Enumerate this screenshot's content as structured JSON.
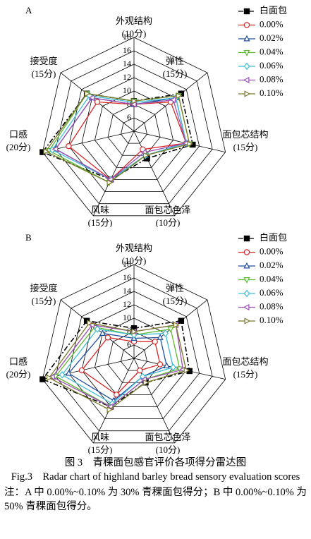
{
  "chart_data": [
    {
      "type": "radar",
      "panel": "A",
      "categories": [
        "外观结构",
        "弹性",
        "面包芯结构",
        "面包芯色泽",
        "风味",
        "口感",
        "接受度"
      ],
      "category_notes": [
        "(10分)",
        "(15分)",
        "(15分)",
        "(10分)",
        "(15分)",
        "(20分)",
        "(15分)"
      ],
      "rlim": [
        4,
        18
      ],
      "rticks": [
        6,
        8,
        10,
        12,
        14,
        16,
        18
      ],
      "series": [
        {
          "name": "白面包",
          "color": "#000000",
          "marker": "square",
          "dash": "dashdot",
          "values": [
            8.5,
            13,
            13,
            8.5,
            12,
            18,
            13
          ]
        },
        {
          "name": "0.00%",
          "color": "#d62728",
          "marker": "circle",
          "values": [
            8,
            11,
            12,
            7,
            12,
            14,
            11
          ]
        },
        {
          "name": "0.02%",
          "color": "#1f4e9c",
          "marker": "triangle-up",
          "values": [
            8,
            12,
            12,
            8,
            12,
            16,
            12
          ]
        },
        {
          "name": "0.04%",
          "color": "#5cb82e",
          "marker": "triangle-down",
          "values": [
            8.5,
            12.5,
            12.5,
            8,
            12.5,
            17,
            13
          ]
        },
        {
          "name": "0.06%",
          "color": "#3fbfd6",
          "marker": "diamond",
          "values": [
            8.3,
            12,
            12,
            8,
            12,
            16.5,
            12.5
          ]
        },
        {
          "name": "0.08%",
          "color": "#9b4fb5",
          "marker": "triangle-left",
          "values": [
            8,
            11.5,
            12,
            7.5,
            12,
            16,
            12
          ]
        },
        {
          "name": "0.10%",
          "color": "#7a7a2a",
          "marker": "triangle-right",
          "values": [
            8.5,
            12.5,
            12.5,
            8,
            12.5,
            17.5,
            13
          ]
        }
      ]
    },
    {
      "type": "radar",
      "panel": "B",
      "categories": [
        "外观结构",
        "弹性",
        "面包芯结构",
        "面包芯色泽",
        "风味",
        "口感",
        "接受度"
      ],
      "category_notes": [
        "(10分)",
        "(15分)",
        "(15分)",
        "(10分)",
        "(15分)",
        "(20分)",
        "(15分)"
      ],
      "rlim": [
        4,
        18
      ],
      "rticks": [
        6,
        8,
        10,
        12,
        14,
        16,
        18
      ],
      "series": [
        {
          "name": "白面包",
          "color": "#000000",
          "marker": "square",
          "dash": "dashdot",
          "values": [
            8.5,
            13,
            12.5,
            8,
            12,
            18,
            13
          ]
        },
        {
          "name": "0.00%",
          "color": "#d62728",
          "marker": "circle",
          "values": [
            6.5,
            8,
            8,
            6,
            10,
            12,
            9
          ]
        },
        {
          "name": "0.02%",
          "color": "#1f4e9c",
          "marker": "triangle-up",
          "values": [
            7,
            9,
            9,
            7,
            11,
            14,
            10
          ]
        },
        {
          "name": "0.04%",
          "color": "#5cb82e",
          "marker": "triangle-down",
          "values": [
            7.5,
            11,
            11,
            7.5,
            12,
            16,
            11.5
          ]
        },
        {
          "name": "0.06%",
          "color": "#3fbfd6",
          "marker": "diamond",
          "values": [
            7.5,
            10,
            10,
            7,
            11.5,
            15,
            11
          ]
        },
        {
          "name": "0.08%",
          "color": "#9b4fb5",
          "marker": "triangle-left",
          "values": [
            8,
            12,
            11.5,
            7.5,
            12,
            16.5,
            12
          ]
        },
        {
          "name": "0.10%",
          "color": "#7a7a2a",
          "marker": "triangle-right",
          "values": [
            8,
            12,
            12,
            8,
            12.5,
            17,
            12.5
          ]
        }
      ]
    }
  ],
  "caption": {
    "zh": "图 3　青稞面包感官评价各项得分雷达图",
    "en": "Fig.3　Radar chart of highland barley bread sensory evaluation scores",
    "note": "注：A 中 0.00%~0.10% 为 30% 青稞面包得分；B 中 0.00%~0.10% 为 50% 青稞面包得分。"
  }
}
